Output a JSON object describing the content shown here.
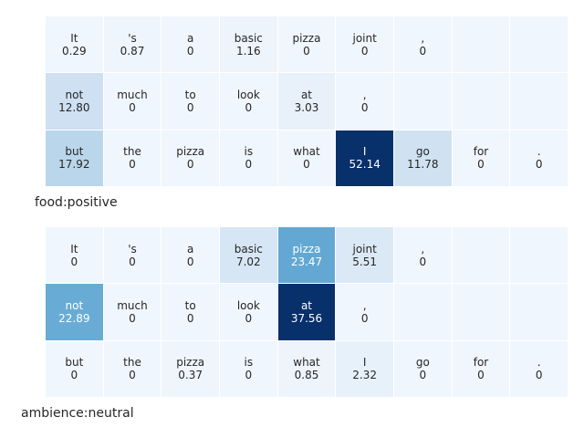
{
  "chart_data": [
    {
      "type": "heatmap",
      "label": "food:positive",
      "rows": [
        {
          "tokens": [
            "It",
            "'s",
            "a",
            "basic",
            "pizza",
            "joint",
            ",",
            "",
            ""
          ],
          "values": [
            "0.29",
            "0.87",
            "0",
            "1.16",
            "0",
            "0",
            "0",
            "",
            ""
          ]
        },
        {
          "tokens": [
            "not",
            "much",
            "to",
            "look",
            "at",
            ",",
            "",
            "",
            ""
          ],
          "values": [
            "12.80",
            "0",
            "0",
            "0",
            "3.03",
            "0",
            "",
            "",
            ""
          ]
        },
        {
          "tokens": [
            "but",
            "the",
            "pizza",
            "is",
            "what",
            "I",
            "go",
            "for",
            "."
          ],
          "values": [
            "17.92",
            "0",
            "0",
            "0",
            "0",
            "52.14",
            "11.78",
            "0",
            "0"
          ]
        }
      ],
      "vmax": 52.14
    },
    {
      "type": "heatmap",
      "label": "ambience:neutral",
      "rows": [
        {
          "tokens": [
            "It",
            "'s",
            "a",
            "basic",
            "pizza",
            "joint",
            ",",
            "",
            ""
          ],
          "values": [
            "0",
            "0",
            "0",
            "7.02",
            "23.47",
            "5.51",
            "0",
            "",
            ""
          ]
        },
        {
          "tokens": [
            "not",
            "much",
            "to",
            "look",
            "at",
            ",",
            "",
            "",
            ""
          ],
          "values": [
            "22.89",
            "0",
            "0",
            "0",
            "37.56",
            "0",
            "",
            "",
            ""
          ]
        },
        {
          "tokens": [
            "but",
            "the",
            "pizza",
            "is",
            "what",
            "I",
            "go",
            "for",
            "."
          ],
          "values": [
            "0",
            "0",
            "0.37",
            "0",
            "0.85",
            "2.32",
            "0",
            "0",
            "0"
          ]
        }
      ],
      "vmax": 37.56
    }
  ],
  "colors": {
    "low": "#f0f6fd",
    "mid": "#4292c6",
    "high": "#08306b",
    "text_dark": "#262626",
    "text_light": "#ffffff"
  }
}
